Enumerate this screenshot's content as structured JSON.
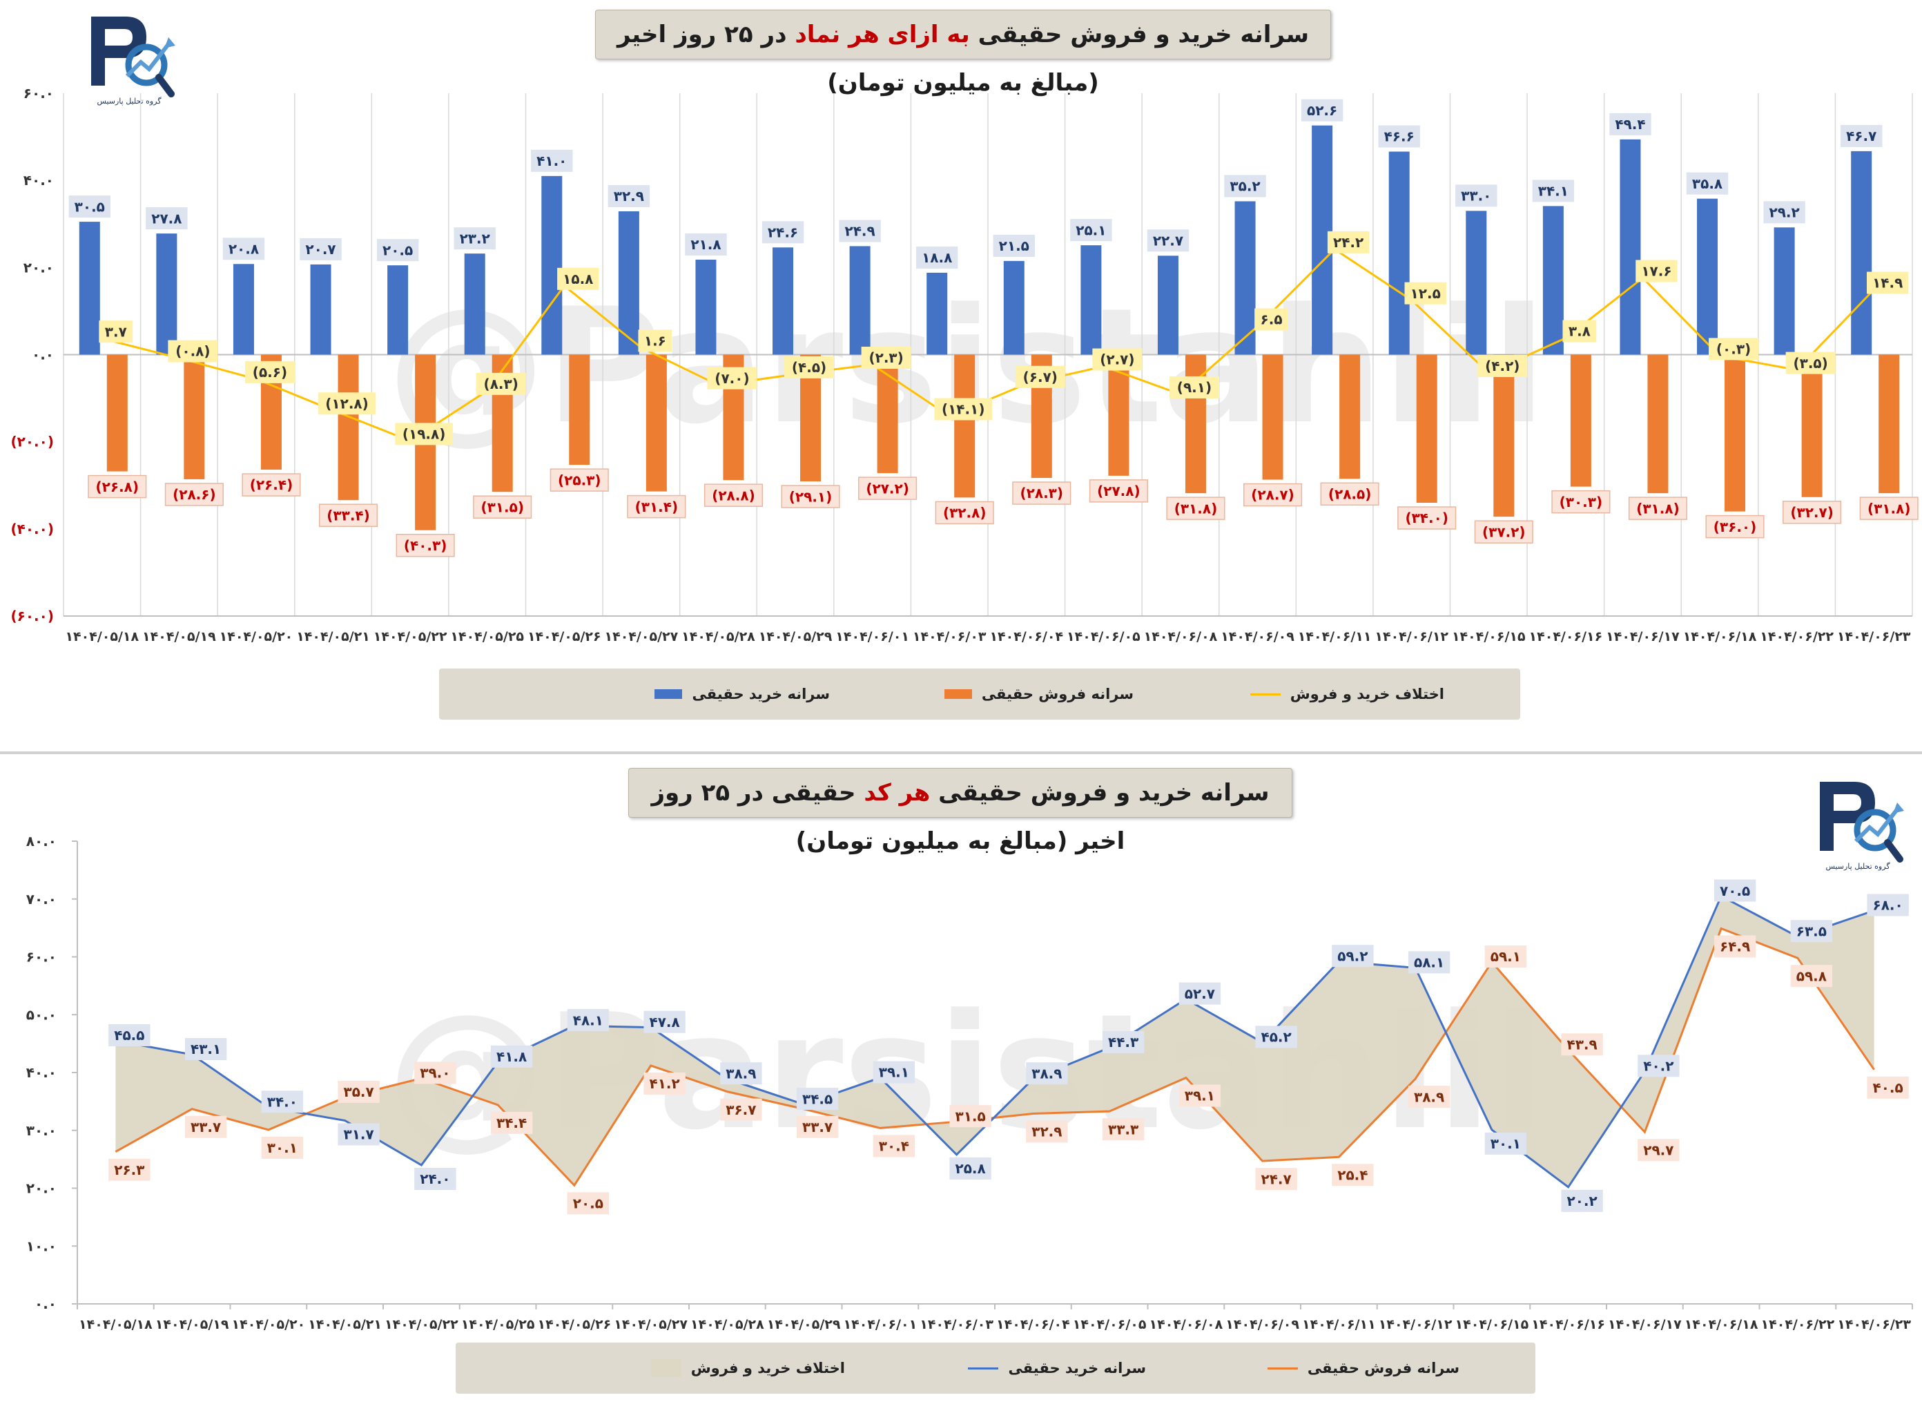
{
  "watermark": "@Parsistahlil",
  "logo_text": "گروه تحلیل پارسیس",
  "dates": [
    "۱۴۰۴/۰۵/۱۸",
    "۱۴۰۴/۰۵/۱۹",
    "۱۴۰۴/۰۵/۲۰",
    "۱۴۰۴/۰۵/۲۱",
    "۱۴۰۴/۰۵/۲۲",
    "۱۴۰۴/۰۵/۲۵",
    "۱۴۰۴/۰۵/۲۶",
    "۱۴۰۴/۰۵/۲۷",
    "۱۴۰۴/۰۵/۲۸",
    "۱۴۰۴/۰۵/۲۹",
    "۱۴۰۴/۰۶/۰۱",
    "۱۴۰۴/۰۶/۰۳",
    "۱۴۰۴/۰۶/۰۴",
    "۱۴۰۴/۰۶/۰۵",
    "۱۴۰۴/۰۶/۰۸",
    "۱۴۰۴/۰۶/۰۹",
    "۱۴۰۴/۰۶/۱۱",
    "۱۴۰۴/۰۶/۱۲",
    "۱۴۰۴/۰۶/۱۵",
    "۱۴۰۴/۰۶/۱۶",
    "۱۴۰۴/۰۶/۱۷",
    "۱۴۰۴/۰۶/۱۸",
    "۱۴۰۴/۰۶/۲۲",
    "۱۴۰۴/۰۶/۲۳"
  ],
  "panel1": {
    "title_pre": "سرانه خرید و فروش حقیقی ",
    "title_hl": "به ازای هر نماد",
    "title_post": " در ۲۵ روز اخیر (مبالغ به میلیون تومان)",
    "legend": {
      "buy": "سرانه خرید حقیقی",
      "sell": "سرانه فروش حقیقی",
      "diff": "اختلاف خرید و فروش"
    }
  },
  "panel2": {
    "title_pre": "سرانه خرید و فروش حقیقی ",
    "title_hl": "هر کد",
    "title_post": " حقیقی در ۲۵ روز اخیر (مبالغ به میلیون تومان)",
    "legend": {
      "diff": "اختلاف خرید و فروش",
      "buy": "سرانه خرید حقیقی",
      "sell": "سرانه فروش حقیقی"
    }
  },
  "colors": {
    "buy": "#4472c4",
    "sell": "#ed7d31",
    "diff": "#ffc000",
    "area": "#ddd8c4",
    "neg_label": "#c00000"
  },
  "chart_data": [
    {
      "type": "bar",
      "title": "سرانه خرید و فروش حقیقی به ازای هر نماد در ۲۵ روز اخیر (مبالغ به میلیون تومان)",
      "ylim": [
        -60,
        60
      ],
      "yticks": [
        60,
        40,
        20,
        0,
        -20,
        -40,
        -60
      ],
      "ytick_labels": [
        "۶۰.۰",
        "۴۰.۰",
        "۲۰.۰",
        "۰.۰",
        "(۲۰.۰)",
        "(۴۰.۰)",
        "(۶۰.۰)"
      ],
      "series": [
        {
          "name": "سرانه خرید حقیقی",
          "kind": "bar",
          "values": [
            30.5,
            27.8,
            20.8,
            20.7,
            20.5,
            23.2,
            41.0,
            32.9,
            21.8,
            24.6,
            24.9,
            18.8,
            21.5,
            25.1,
            22.7,
            35.2,
            52.6,
            46.6,
            33.0,
            34.1,
            49.4,
            35.8,
            29.2,
            46.7
          ],
          "labels": [
            "۳۰.۵",
            "۲۷.۸",
            "۲۰.۸",
            "۲۰.۷",
            "۲۰.۵",
            "۲۳.۲",
            "۴۱.۰",
            "۳۲.۹",
            "۲۱.۸",
            "۲۴.۶",
            "۲۴.۹",
            "۱۸.۸",
            "۲۱.۵",
            "۲۵.۱",
            "۲۲.۷",
            "۳۵.۲",
            "۵۲.۶",
            "۴۶.۶",
            "۳۳.۰",
            "۳۴.۱",
            "۴۹.۴",
            "۳۵.۸",
            "۲۹.۲",
            "۴۶.۷"
          ]
        },
        {
          "name": "سرانه فروش حقیقی",
          "kind": "bar",
          "values": [
            -26.8,
            -28.6,
            -26.4,
            -33.4,
            -40.3,
            -31.5,
            -25.3,
            -31.4,
            -28.8,
            -29.1,
            -27.2,
            -32.8,
            -28.3,
            -27.8,
            -31.8,
            -28.7,
            -28.5,
            -34.0,
            -37.2,
            -30.3,
            -31.8,
            -36.0,
            -32.7,
            -31.8
          ],
          "labels": [
            "(۲۶.۸)",
            "(۲۸.۶)",
            "(۲۶.۴)",
            "(۳۳.۴)",
            "(۴۰.۳)",
            "(۳۱.۵)",
            "(۲۵.۳)",
            "(۳۱.۴)",
            "(۲۸.۸)",
            "(۲۹.۱)",
            "(۲۷.۲)",
            "(۳۲.۸)",
            "(۲۸.۳)",
            "(۲۷.۸)",
            "(۳۱.۸)",
            "(۲۸.۷)",
            "(۲۸.۵)",
            "(۳۴.۰)",
            "(۳۷.۲)",
            "(۳۰.۳)",
            "(۳۱.۸)",
            "(۳۶.۰)",
            "(۳۲.۷)",
            "(۳۱.۸)"
          ]
        },
        {
          "name": "اختلاف خرید و فروش",
          "kind": "line",
          "values": [
            3.7,
            -0.8,
            -5.6,
            -12.8,
            -19.8,
            -8.3,
            15.8,
            1.6,
            -7.0,
            -4.5,
            -2.3,
            -14.1,
            -6.7,
            -2.7,
            -9.1,
            6.5,
            24.2,
            12.5,
            -4.2,
            3.8,
            17.6,
            -0.3,
            -3.5,
            14.9
          ],
          "labels": [
            "۳.۷",
            "(۰.۸)",
            "(۵.۶)",
            "(۱۲.۸)",
            "(۱۹.۸)",
            "(۸.۳)",
            "۱۵.۸",
            "۱.۶",
            "(۷.۰)",
            "(۴.۵)",
            "(۲.۳)",
            "(۱۴.۱)",
            "(۶.۷)",
            "(۲.۷)",
            "(۹.۱)",
            "۶.۵",
            "۲۴.۲",
            "۱۲.۵",
            "(۴.۲)",
            "۳.۸",
            "۱۷.۶",
            "(۰.۳)",
            "(۳.۵)",
            "۱۴.۹"
          ]
        }
      ],
      "legend_position": "bottom",
      "grid": "vertical"
    },
    {
      "type": "line",
      "title": "سرانه خرید و فروش حقیقی هر کد حقیقی در ۲۵ روز اخیر (مبالغ به میلیون تومان)",
      "ylim": [
        0,
        80
      ],
      "yticks": [
        80,
        70,
        60,
        50,
        40,
        30,
        20,
        10,
        0
      ],
      "ytick_labels": [
        "۸۰.۰",
        "۷۰.۰",
        "۶۰.۰",
        "۵۰.۰",
        "۴۰.۰",
        "۳۰.۰",
        "۲۰.۰",
        "۱۰.۰",
        "۰.۰"
      ],
      "series": [
        {
          "name": "سرانه خرید حقیقی",
          "values": [
            45.5,
            43.1,
            34.0,
            31.7,
            24.0,
            41.8,
            48.1,
            47.8,
            38.9,
            34.5,
            39.1,
            25.8,
            38.9,
            44.3,
            52.7,
            45.2,
            59.2,
            58.1,
            30.1,
            20.2,
            40.2,
            70.5,
            63.5,
            68.0
          ],
          "labels": [
            "۴۵.۵",
            "۴۳.۱",
            "۳۴.۰",
            "۳۱.۷",
            "۲۴.۰",
            "۴۱.۸",
            "۴۸.۱",
            "۴۷.۸",
            "۳۸.۹",
            "۳۴.۵",
            "۳۹.۱",
            "۲۵.۸",
            "۳۸.۹",
            "۴۴.۳",
            "۵۲.۷",
            "۴۵.۲",
            "۵۹.۲",
            "۵۸.۱",
            "۳۰.۱",
            "۲۰.۲",
            "۴۰.۲",
            "۷۰.۵",
            "۶۳.۵",
            "۶۸.۰"
          ]
        },
        {
          "name": "سرانه فروش حقیقی",
          "values": [
            26.3,
            33.7,
            30.1,
            35.7,
            39.0,
            34.4,
            20.5,
            41.2,
            36.7,
            33.7,
            30.4,
            31.5,
            32.9,
            33.3,
            39.1,
            24.7,
            25.4,
            38.9,
            59.1,
            43.9,
            29.7,
            64.9,
            59.8,
            40.5
          ],
          "labels": [
            "۲۶.۳",
            "۳۳.۷",
            "۳۰.۱",
            "۳۵.۷",
            "۳۹.۰",
            "۳۴.۴",
            "۲۰.۵",
            "۴۱.۲",
            "۳۶.۷",
            "۳۳.۷",
            "۳۰.۴",
            "۳۱.۵",
            "۳۲.۹",
            "۳۳.۳",
            "۳۹.۱",
            "۲۴.۷",
            "۲۵.۴",
            "۳۸.۹",
            "۵۹.۱",
            "۴۳.۹",
            "۲۹.۷",
            "۶۴.۹",
            "۵۹.۸",
            "۴۰.۵"
          ]
        }
      ],
      "area": {
        "name": "اختلاف خرید و فروش",
        "between": [
          "سرانه خرید حقیقی",
          "سرانه فروش حقیقی"
        ]
      },
      "legend_position": "bottom",
      "grid": "none"
    }
  ]
}
